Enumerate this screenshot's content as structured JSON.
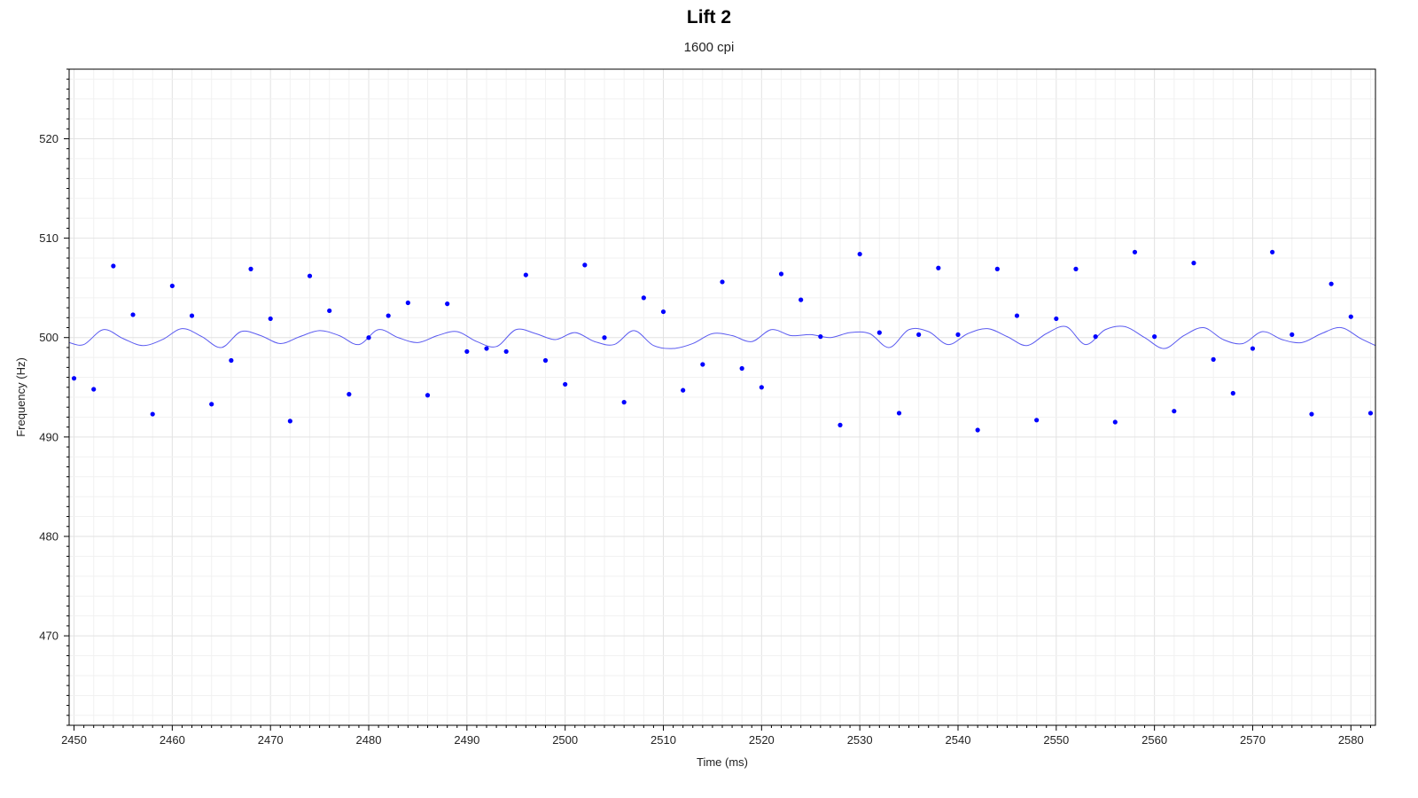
{
  "chart_data": {
    "type": "scatter",
    "title": "Lift 2",
    "subtitle": "1600 cpi",
    "xlabel": "Time (ms)",
    "ylabel": "Frequency (Hz)",
    "xlim": [
      2449.5,
      2582.5
    ],
    "ylim": [
      461,
      527
    ],
    "xticks": [
      2450,
      2460,
      2470,
      2480,
      2490,
      2500,
      2510,
      2520,
      2530,
      2540,
      2550,
      2560,
      2570,
      2580
    ],
    "yticks": [
      470,
      480,
      490,
      500,
      510,
      520
    ],
    "grid": true,
    "colors": {
      "points": "#0000ff",
      "line": "#5b5bf0",
      "grid": "#e8e8e8",
      "axis": "#000000"
    },
    "series": [
      {
        "kind": "points",
        "x": [
          2450,
          2452,
          2454,
          2456,
          2458,
          2460,
          2462,
          2464,
          2466,
          2468,
          2470,
          2472,
          2474,
          2476,
          2478,
          2480,
          2482,
          2484,
          2486,
          2488,
          2490,
          2492,
          2494,
          2496,
          2498,
          2500,
          2502,
          2504,
          2506,
          2508,
          2510,
          2512,
          2514,
          2516,
          2518,
          2520,
          2522,
          2524,
          2526,
          2528,
          2530,
          2532,
          2534,
          2536,
          2538,
          2540,
          2542,
          2544,
          2546,
          2548,
          2550,
          2552,
          2554,
          2556,
          2558,
          2560,
          2562,
          2564,
          2566,
          2568,
          2570,
          2572,
          2574,
          2576,
          2578,
          2580,
          2582
        ],
        "y": [
          495.9,
          494.8,
          507.2,
          502.3,
          492.3,
          505.2,
          502.2,
          493.3,
          497.7,
          506.9,
          501.9,
          491.6,
          506.2,
          502.7,
          494.3,
          500.0,
          502.2,
          503.5,
          494.2,
          503.4,
          498.6,
          498.9,
          498.6,
          506.3,
          497.7,
          495.3,
          507.3,
          500.0,
          493.5,
          504.0,
          502.6,
          494.7,
          497.3,
          505.6,
          496.9,
          495.0,
          506.4,
          503.8,
          500.1,
          491.2,
          508.4,
          500.5,
          492.4,
          500.3,
          507.0,
          500.3,
          490.7,
          506.9,
          502.2,
          491.7,
          501.9,
          506.9,
          500.1,
          491.5,
          508.6,
          500.1,
          492.6,
          507.5,
          497.8,
          494.4,
          498.9,
          508.6,
          500.3,
          492.3,
          505.4,
          502.1,
          492.4
        ]
      },
      {
        "kind": "smoothed-line",
        "x": [
          2449.5,
          2451,
          2453,
          2455,
          2457,
          2459,
          2461,
          2463,
          2465,
          2467,
          2469,
          2471,
          2473,
          2475,
          2477,
          2479,
          2481,
          2483,
          2485,
          2487,
          2489,
          2491,
          2493,
          2495,
          2497,
          2499,
          2501,
          2503,
          2505,
          2507,
          2509,
          2511,
          2513,
          2515,
          2517,
          2519,
          2521,
          2523,
          2525,
          2527,
          2529,
          2531,
          2533,
          2535,
          2537,
          2539,
          2541,
          2543,
          2545,
          2547,
          2549,
          2551,
          2553,
          2555,
          2557,
          2559,
          2561,
          2563,
          2565,
          2567,
          2569,
          2571,
          2573,
          2575,
          2577,
          2579,
          2581,
          2582.5
        ],
        "y": [
          499.5,
          499.3,
          500.8,
          499.9,
          499.2,
          499.8,
          500.9,
          500.1,
          499.0,
          500.6,
          500.2,
          499.4,
          500.1,
          500.7,
          500.2,
          499.3,
          500.8,
          500.0,
          499.5,
          500.2,
          500.6,
          499.6,
          499.1,
          500.8,
          500.4,
          499.8,
          500.5,
          499.6,
          499.3,
          500.7,
          499.2,
          498.9,
          499.4,
          500.4,
          500.2,
          499.6,
          500.8,
          500.2,
          500.3,
          500.0,
          500.5,
          500.4,
          499.0,
          500.8,
          500.6,
          499.3,
          500.4,
          500.9,
          500.1,
          499.2,
          500.4,
          501.1,
          499.3,
          500.8,
          501.1,
          500.0,
          498.9,
          500.2,
          501.0,
          499.8,
          499.4,
          500.6,
          499.8,
          499.5,
          500.4,
          501.0,
          499.9,
          499.2
        ]
      }
    ]
  }
}
